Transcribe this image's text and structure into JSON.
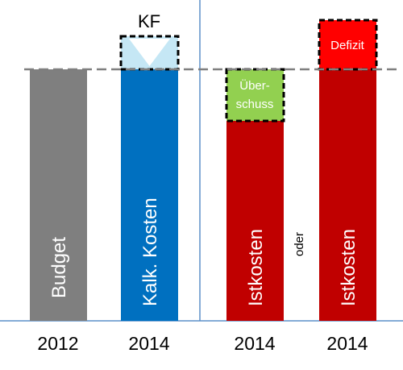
{
  "bars": [
    {
      "label": "Budget",
      "year": "2012"
    },
    {
      "label": "Kalk. Kosten",
      "year": "2014"
    },
    {
      "label": "Istkosten",
      "year": "2014"
    },
    {
      "label": "Istkosten",
      "year": "2014"
    }
  ],
  "kf": "KF",
  "ueberschuss": [
    "Über-",
    "schuss"
  ],
  "defizit": "Defizit",
  "oder": "oder"
}
